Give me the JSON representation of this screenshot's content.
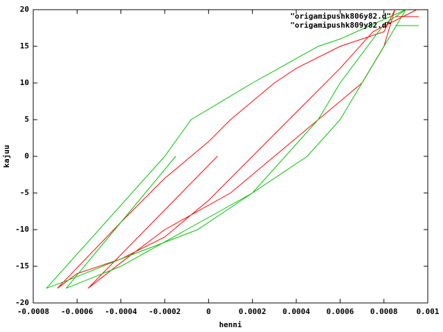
{
  "chart_data": {
    "type": "line",
    "xlabel": "henni",
    "ylabel": "kajuu",
    "xlim": [
      -0.0008,
      0.001
    ],
    "ylim": [
      -20,
      20
    ],
    "xticks": [
      -0.0008,
      -0.0006,
      -0.0004,
      -0.0002,
      0,
      0.0002,
      0.0004,
      0.0006,
      0.0008,
      0.001
    ],
    "yticks": [
      -20,
      -15,
      -10,
      -5,
      0,
      5,
      10,
      15,
      20
    ],
    "legend": "top-right",
    "series": [
      {
        "name": "\"origamipushk806y82.d\"",
        "color": "#ff0000",
        "x": [
          4e-05,
          -0.00055,
          -0.0004,
          -0.0002,
          0.0001,
          0.0003,
          0.0005,
          0.0007,
          0.0008,
          0.00085,
          0.0008,
          0.0006,
          0.0004,
          0.0003,
          0.0001,
          0,
          -0.0002,
          -0.0004,
          -0.00069,
          -0.0006,
          -0.0004,
          -0.0002,
          0,
          0.0002,
          0.0004,
          0.0006,
          0.00075,
          0.00095
        ],
        "values": [
          0,
          -18,
          -14.5,
          -10,
          -5,
          0,
          5,
          10,
          15,
          20,
          17,
          15,
          12,
          10,
          5,
          2,
          -3,
          -9,
          -18,
          -16,
          -14,
          -11,
          -6,
          0,
          6,
          12,
          17,
          20
        ]
      },
      {
        "name": "\"origamipushk809y82.d\"",
        "color": "#00c000",
        "x": [
          -0.00015,
          -0.00065,
          -0.0004,
          -0.0001,
          0.0002,
          0.00035,
          0.0005,
          0.0006,
          0.0008,
          0.0009,
          0.0006,
          0.0005,
          0.0002,
          -8e-05,
          -0.0002,
          -0.00074,
          -0.00065,
          -0.0004,
          -5e-05,
          0.0002,
          0.00045,
          0.0006,
          0.0007,
          0.0009
        ],
        "values": [
          0,
          -18,
          -15,
          -10,
          -5,
          0,
          5,
          10,
          18,
          20,
          16,
          15,
          10,
          5,
          0,
          -18,
          -17,
          -14,
          -10,
          -5,
          0,
          5,
          10,
          20
        ]
      }
    ]
  }
}
